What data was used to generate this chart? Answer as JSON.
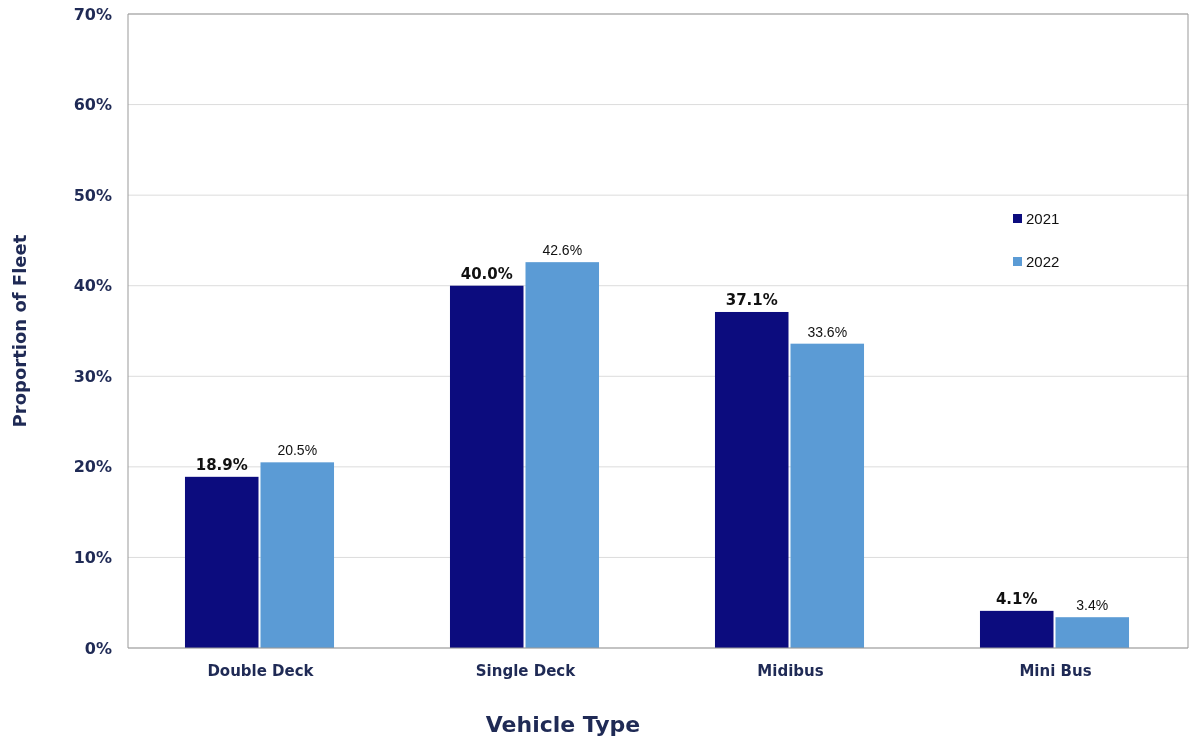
{
  "chart_data": {
    "type": "bar",
    "xlabel": "Vehicle Type",
    "ylabel": "Proportion of Fleet",
    "categories": [
      "Double Deck",
      "Single Deck",
      "Midibus",
      "Mini Bus"
    ],
    "series": [
      {
        "name": "2021",
        "color": "#0c0c7e",
        "values": [
          18.9,
          40.0,
          37.1,
          4.1
        ],
        "value_labels": [
          "18.9%",
          "40.0%",
          "37.1%",
          "4.1%"
        ]
      },
      {
        "name": "2022",
        "color": "#5b9bd5",
        "values": [
          20.5,
          42.6,
          33.6,
          3.4
        ],
        "value_labels": [
          "20.5%",
          "42.6%",
          "33.6%",
          "3.4%"
        ]
      }
    ],
    "ylim": [
      0,
      70
    ],
    "yticks": [
      {
        "value": 0,
        "label": "0%"
      },
      {
        "value": 10,
        "label": "10%"
      },
      {
        "value": 20,
        "label": "20%"
      },
      {
        "value": 30,
        "label": "30%"
      },
      {
        "value": 40,
        "label": "40%"
      },
      {
        "value": 50,
        "label": "50%"
      },
      {
        "value": 60,
        "label": "60%"
      },
      {
        "value": 70,
        "label": "70%"
      }
    ],
    "grid": "y",
    "legend": "top right"
  }
}
